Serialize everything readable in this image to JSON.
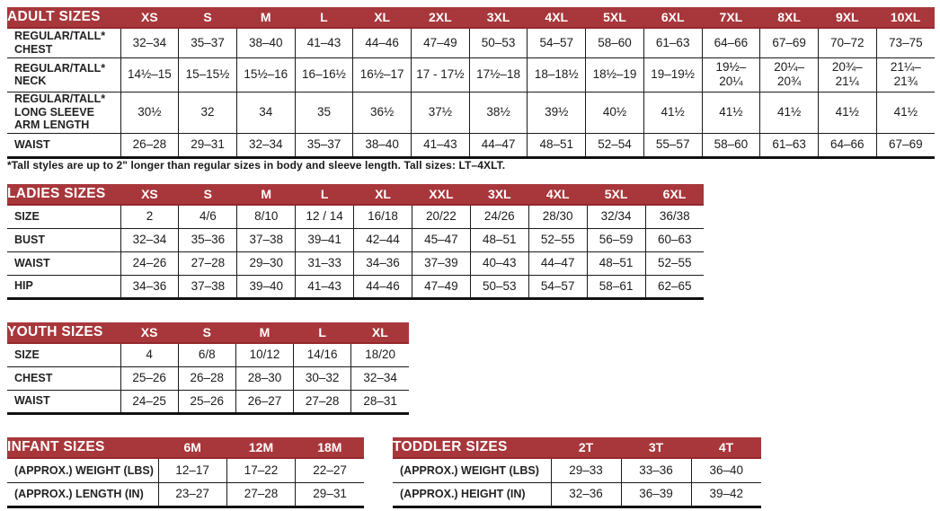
{
  "colors": {
    "header_bg": "#a8373b",
    "header_text": "#ffffff",
    "border": "#1b1b1b"
  },
  "footnote": "*Tall styles are up to 2\" longer than regular sizes in body and sleeve length. Tall sizes: LT–4XLT.",
  "chart_data": [
    {
      "type": "table",
      "title": "ADULT SIZES",
      "columns": [
        "XS",
        "S",
        "M",
        "L",
        "XL",
        "2XL",
        "3XL",
        "4XL",
        "5XL",
        "6XL",
        "7XL",
        "8XL",
        "9XL",
        "10XL"
      ],
      "rows": [
        {
          "label": "REGULAR/TALL*\nCHEST",
          "values": [
            "32–34",
            "35–37",
            "38–40",
            "41–43",
            "44–46",
            "47–49",
            "50–53",
            "54–57",
            "58–60",
            "61–63",
            "64–66",
            "67–69",
            "70–72",
            "73–75"
          ]
        },
        {
          "label": "REGULAR/TALL*\nNECK",
          "values": [
            "14½–15",
            "15–15½",
            "15½–16",
            "16–16½",
            "16½–17",
            "17 - 17½",
            "17½–18",
            "18–18½",
            "18½–19",
            "19–19½",
            "19½–\n20¼",
            "20¼–\n20¾",
            "20¾–\n21¼",
            "21¼–\n21¾"
          ]
        },
        {
          "label": "REGULAR/TALL*\nLONG SLEEVE\nARM LENGTH",
          "values": [
            "30½",
            "32",
            "34",
            "35",
            "36½",
            "37½",
            "38½",
            "39½",
            "40½",
            "41½",
            "41½",
            "41½",
            "41½",
            "41½"
          ]
        },
        {
          "label": "WAIST",
          "values": [
            "26–28",
            "29–31",
            "32–34",
            "35–37",
            "38–40",
            "41–43",
            "44–47",
            "48–51",
            "52–54",
            "55–57",
            "58–60",
            "61–63",
            "64–66",
            "67–69"
          ]
        }
      ]
    },
    {
      "type": "table",
      "title": "LADIES SIZES",
      "columns": [
        "XS",
        "S",
        "M",
        "L",
        "XL",
        "XXL",
        "3XL",
        "4XL",
        "5XL",
        "6XL"
      ],
      "rows": [
        {
          "label": "SIZE",
          "values": [
            "2",
            "4/6",
            "8/10",
            "12 / 14",
            "16/18",
            "20/22",
            "24/26",
            "28/30",
            "32/34",
            "36/38"
          ]
        },
        {
          "label": "BUST",
          "values": [
            "32–34",
            "35–36",
            "37–38",
            "39–41",
            "42–44",
            "45–47",
            "48–51",
            "52–55",
            "56–59",
            "60–63"
          ]
        },
        {
          "label": "WAIST",
          "values": [
            "24–26",
            "27–28",
            "29–30",
            "31–33",
            "34–36",
            "37–39",
            "40–43",
            "44–47",
            "48–51",
            "52–55"
          ]
        },
        {
          "label": "HIP",
          "values": [
            "34–36",
            "37–38",
            "39–40",
            "41–43",
            "44–46",
            "47–49",
            "50–53",
            "54–57",
            "58–61",
            "62–65"
          ]
        }
      ]
    },
    {
      "type": "table",
      "title": "YOUTH SIZES",
      "columns": [
        "XS",
        "S",
        "M",
        "L",
        "XL"
      ],
      "rows": [
        {
          "label": "SIZE",
          "values": [
            "4",
            "6/8",
            "10/12",
            "14/16",
            "18/20"
          ]
        },
        {
          "label": "CHEST",
          "values": [
            "25–26",
            "26–28",
            "28–30",
            "30–32",
            "32–34"
          ]
        },
        {
          "label": "WAIST",
          "values": [
            "24–25",
            "25–26",
            "26–27",
            "27–28",
            "28–31"
          ]
        }
      ]
    },
    {
      "type": "table",
      "title": "INFANT SIZES",
      "columns": [
        "6M",
        "12M",
        "18M"
      ],
      "rows": [
        {
          "label": "(APPROX.) WEIGHT (LBS)",
          "values": [
            "12–17",
            "17–22",
            "22–27"
          ]
        },
        {
          "label": "(APPROX.) LENGTH (IN)",
          "values": [
            "23–27",
            "27–28",
            "29–31"
          ]
        }
      ]
    },
    {
      "type": "table",
      "title": "TODDLER SIZES",
      "columns": [
        "2T",
        "3T",
        "4T"
      ],
      "rows": [
        {
          "label": "(APPROX.) WEIGHT (LBS)",
          "values": [
            "29–33",
            "33–36",
            "36–40"
          ]
        },
        {
          "label": "(APPROX.) HEIGHT (IN)",
          "values": [
            "32–36",
            "36–39",
            "39–42"
          ]
        }
      ]
    }
  ]
}
